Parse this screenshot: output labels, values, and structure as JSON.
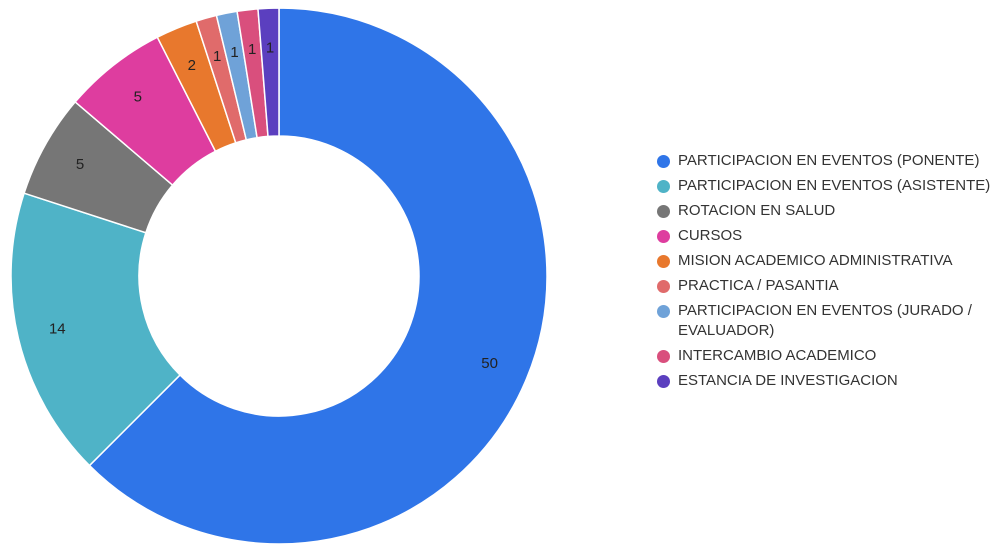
{
  "chart_data": {
    "type": "pie",
    "variant": "donut",
    "legend_position": "right",
    "categories": [
      "PARTICIPACION EN EVENTOS (PONENTE)",
      "PARTICIPACION EN EVENTOS (ASISTENTE)",
      "ROTACION EN SALUD",
      "CURSOS",
      "MISION ACADEMICO ADMINISTRATIVA",
      "PRACTICA / PASANTIA",
      "PARTICIPACION EN EVENTOS (JURADO / EVALUADOR)",
      "INTERCAMBIO ACADEMICO",
      "ESTANCIA DE INVESTIGACION"
    ],
    "values": [
      50,
      14,
      5,
      5,
      2,
      1,
      1,
      1,
      1
    ],
    "colors": [
      "#2f75e8",
      "#4fb3c7",
      "#767676",
      "#de3d9f",
      "#e8782d",
      "#e06b6b",
      "#6fa2d8",
      "#d94f7d",
      "#5b3fbf"
    ],
    "data_labels": [
      "50",
      "14",
      "5",
      "5",
      "2",
      "1",
      "1",
      "1",
      "1"
    ]
  }
}
